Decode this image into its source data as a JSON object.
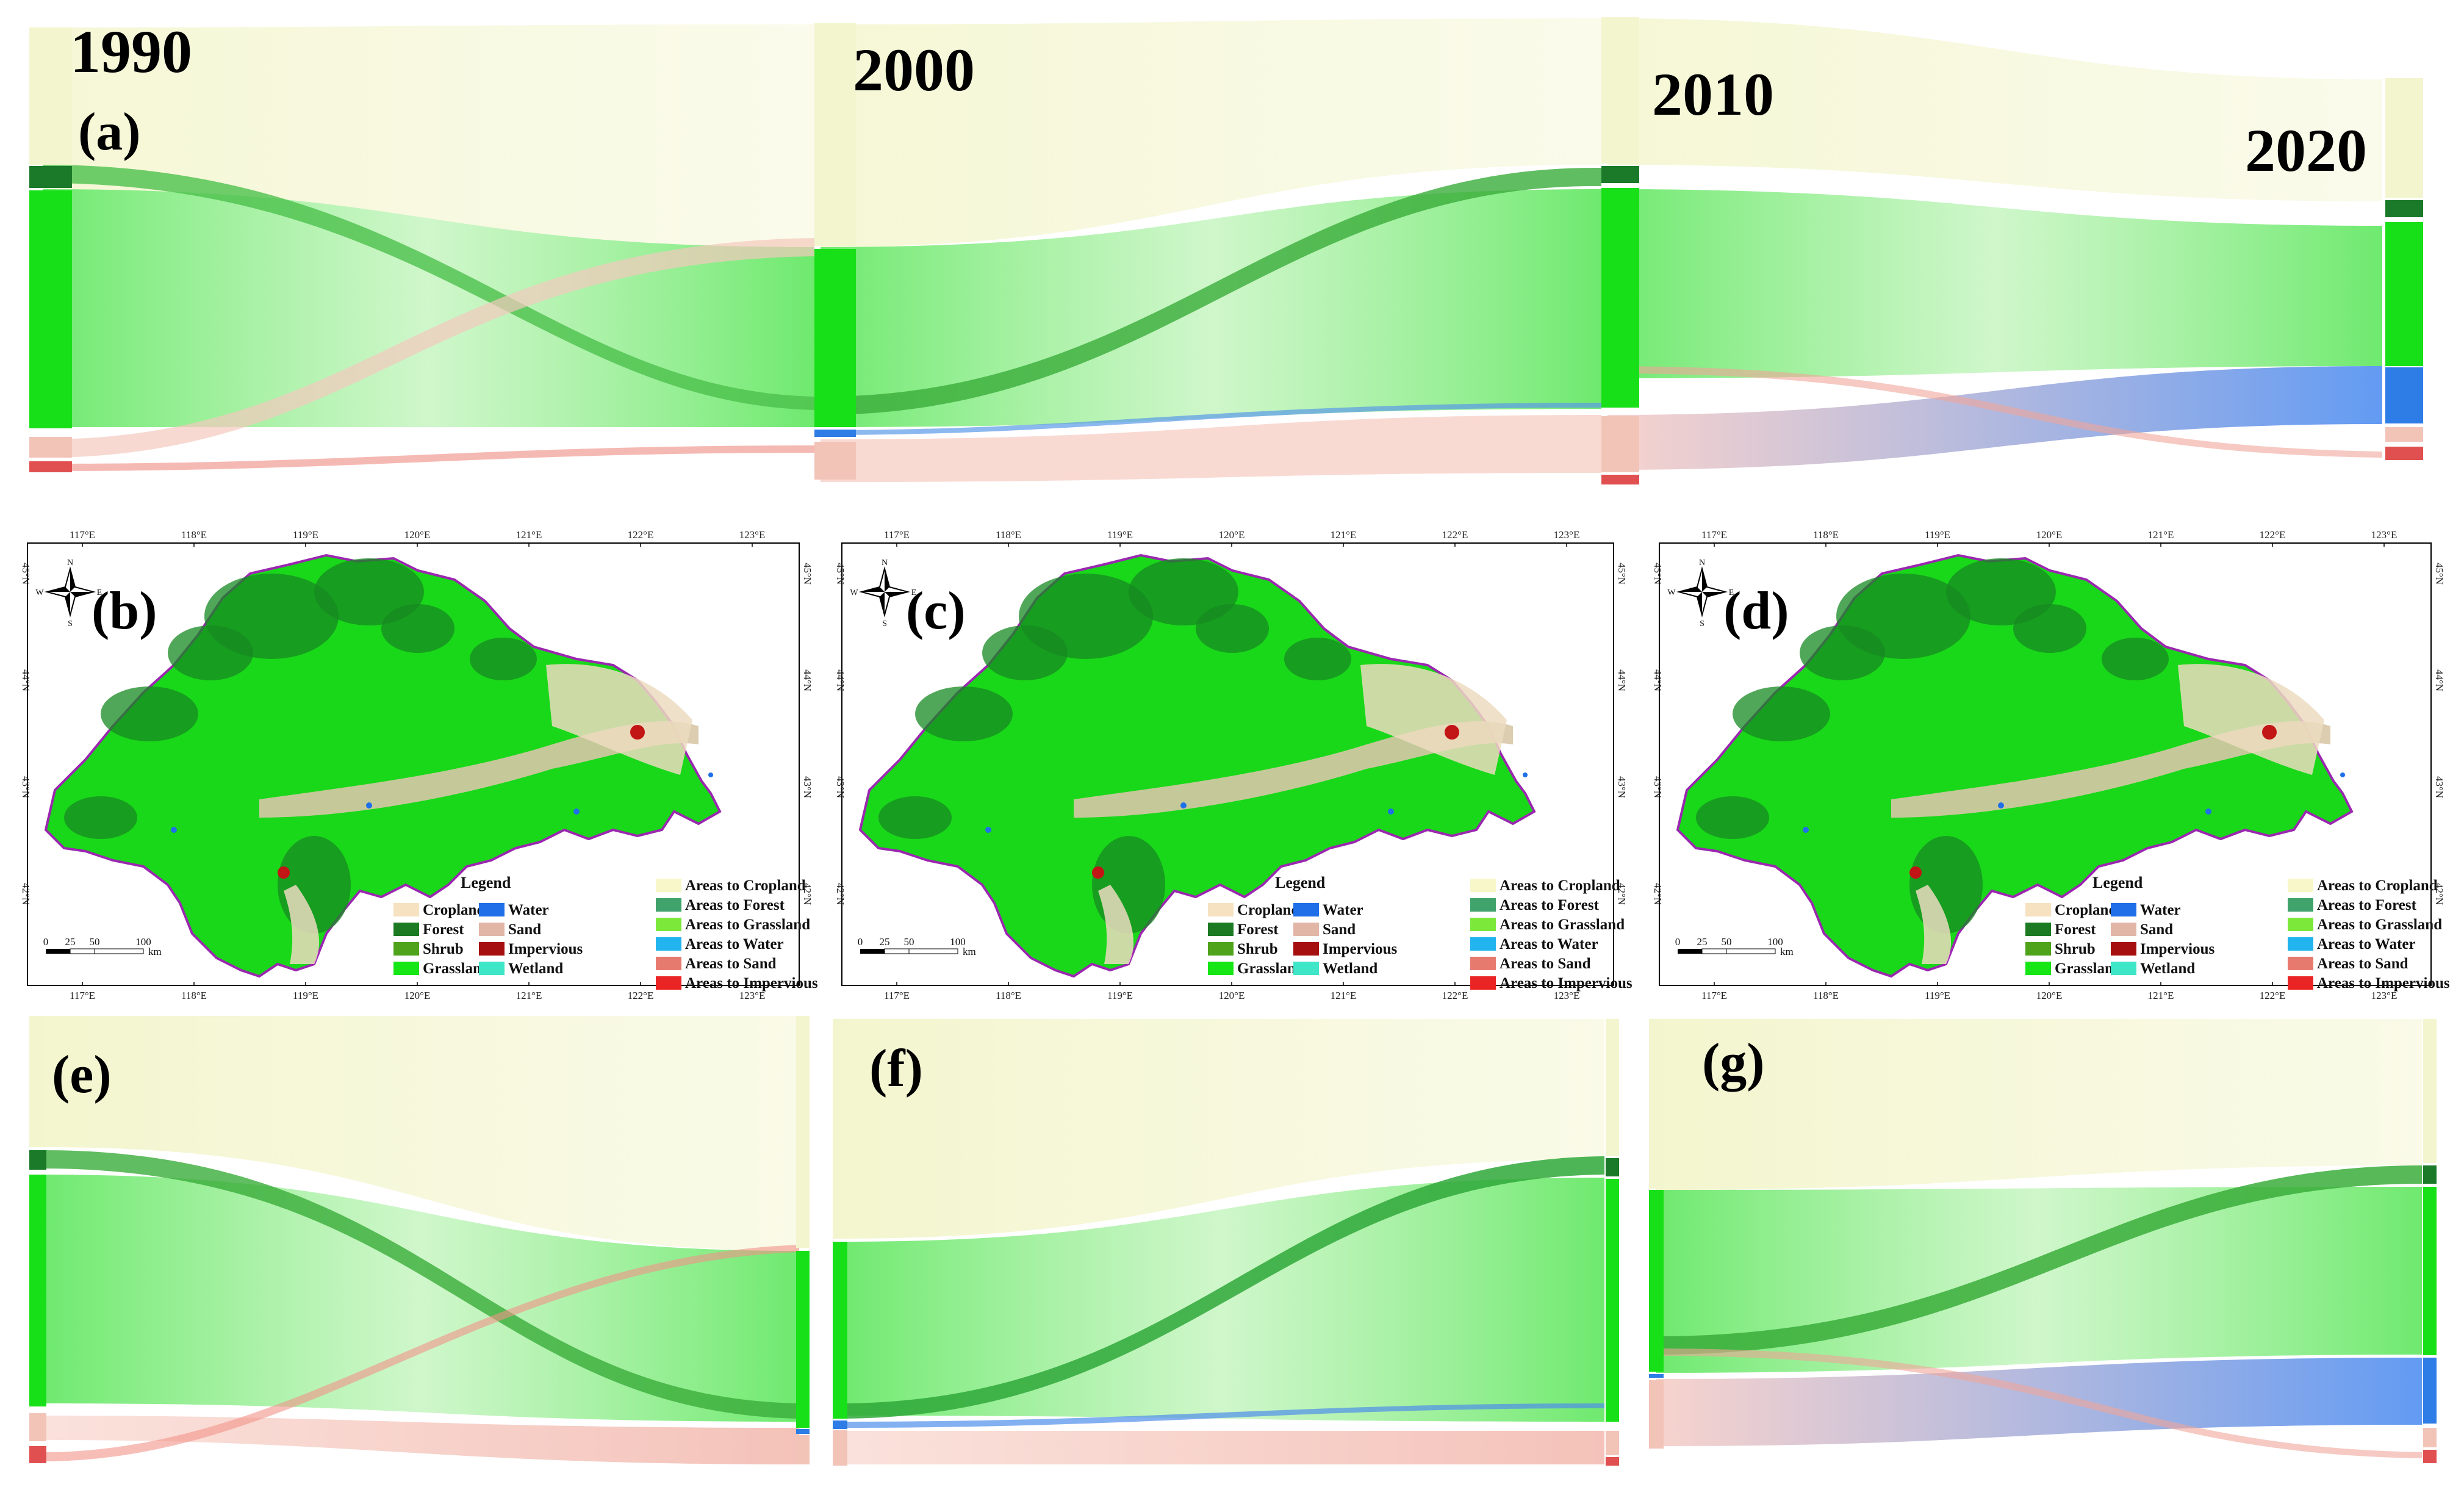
{
  "years": [
    "1990",
    "2000",
    "2010",
    "2020"
  ],
  "panel_labels": [
    "(a)",
    "(b)",
    "(c)",
    "(d)",
    "(e)",
    "(f)",
    "(g)"
  ],
  "lon_ticks": [
    "117°E",
    "118°E",
    "119°E",
    "120°E",
    "121°E",
    "122°E",
    "123°E"
  ],
  "lat_ticks": [
    "45°N",
    "44°N",
    "43°N",
    "42°N"
  ],
  "compass": {
    "n": "N",
    "s": "S",
    "e": "E",
    "w": "W"
  },
  "scale": {
    "ticks": [
      "0",
      "25",
      "50",
      "100"
    ],
    "unit": "km"
  },
  "legend": {
    "title": "Legend",
    "classes": [
      {
        "name": "Cropland",
        "color": "#f6e2c0"
      },
      {
        "name": "Forest",
        "color": "#1c7a23"
      },
      {
        "name": "Shrub",
        "color": "#4fa31a"
      },
      {
        "name": "Grassland",
        "color": "#16e516"
      },
      {
        "name": "Water",
        "color": "#1f6fe8"
      },
      {
        "name": "Sand",
        "color": "#e2b6a6"
      },
      {
        "name": "Impervious",
        "color": "#a50f0f"
      },
      {
        "name": "Wetland",
        "color": "#3fe6c8"
      }
    ],
    "transitions": [
      {
        "name": "Areas to Cropland",
        "color": "#f7f7c9"
      },
      {
        "name": "Areas to Forest",
        "color": "#3fa36b"
      },
      {
        "name": "Areas to Grassland",
        "color": "#7be83a"
      },
      {
        "name": "Areas to Water",
        "color": "#22b4ee"
      },
      {
        "name": "Areas to Sand",
        "color": "#e77a6f"
      },
      {
        "name": "Areas to Impervious",
        "color": "#ea2424"
      }
    ]
  },
  "colors": {
    "cropland": "#f3f5cf",
    "forest": "#1a7a2a",
    "grassland": "#18e018",
    "water": "#2e7de6",
    "sand": "#f2c4b8",
    "impervious": "#e05050",
    "wetland": "#3fe6c8"
  }
}
